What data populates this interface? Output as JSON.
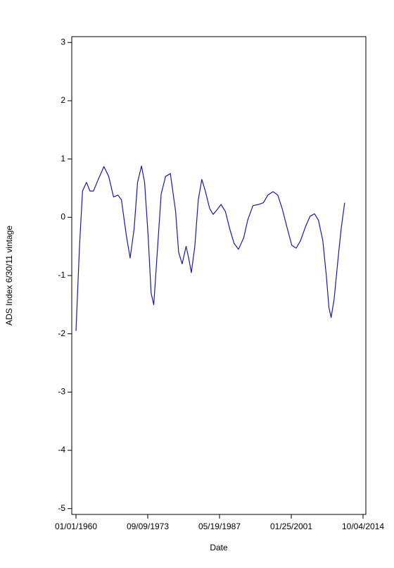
{
  "chart_data": {
    "type": "line",
    "x_label": "Date",
    "y_label": "ADS Index 6/30/11 vintage",
    "x": [
      "1960-01",
      "1960-09",
      "1961-04",
      "1962-01",
      "1962-09",
      "1963-05",
      "1964-04",
      "1965-05",
      "1966-04",
      "1967-03",
      "1968-01",
      "1968-09",
      "1969-08",
      "1970-05",
      "1971-02",
      "1971-10",
      "1972-07",
      "1973-02",
      "1973-10",
      "1974-05",
      "1974-11",
      "1975-08",
      "1976-04",
      "1977-02",
      "1978-01",
      "1979-01",
      "1979-08",
      "1980-04",
      "1981-01",
      "1981-07",
      "1982-01",
      "1982-09",
      "1983-05",
      "1984-01",
      "1984-09",
      "1985-07",
      "1986-03",
      "1986-11",
      "1987-09",
      "1988-07",
      "1989-05",
      "1990-03",
      "1991-01",
      "1992-01",
      "1992-10",
      "1993-10",
      "1994-11",
      "1995-10",
      "1996-08",
      "1997-08",
      "1998-07",
      "1999-05",
      "2000-05",
      "2001-03",
      "2002-01",
      "2002-11",
      "2003-11",
      "2004-09",
      "2005-07",
      "2006-04",
      "2007-02",
      "2007-10",
      "2008-04",
      "2008-09",
      "2009-04",
      "2010-01",
      "2010-08",
      "2011-04"
    ],
    "series": [
      {
        "color": "#1a1aa6",
        "values": [
          -1.95,
          -0.5,
          0.45,
          0.6,
          0.45,
          0.45,
          0.65,
          0.87,
          0.7,
          0.35,
          0.38,
          0.3,
          -0.3,
          -0.7,
          -0.2,
          0.6,
          0.88,
          0.6,
          -0.3,
          -1.3,
          -1.5,
          -0.5,
          0.4,
          0.7,
          0.75,
          0.1,
          -0.6,
          -0.8,
          -0.5,
          -0.7,
          -0.95,
          -0.5,
          0.3,
          0.65,
          0.45,
          0.15,
          0.05,
          0.12,
          0.22,
          0.1,
          -0.2,
          -0.45,
          -0.55,
          -0.35,
          -0.05,
          0.2,
          0.22,
          0.25,
          0.38,
          0.44,
          0.38,
          0.15,
          -0.2,
          -0.48,
          -0.53,
          -0.4,
          -0.15,
          0.02,
          0.06,
          -0.05,
          -0.4,
          -1.0,
          -1.55,
          -1.72,
          -1.4,
          -0.7,
          -0.2,
          0.25
        ]
      }
    ],
    "xlim": [
      "1959-03-13",
      "2015-04-18"
    ],
    "xticks": [
      {
        "value": "1960-01-01",
        "label": "01/01/1960"
      },
      {
        "value": "1973-09-09",
        "label": "09/09/1973"
      },
      {
        "value": "1987-05-19",
        "label": "05/19/1987"
      },
      {
        "value": "2001-01-25",
        "label": "01/25/2001"
      },
      {
        "value": "2014-10-04",
        "label": "10/04/2014"
      }
    ],
    "ylim": [
      -5.1,
      3.1
    ],
    "yticks": [
      -5,
      -4,
      -3,
      -2,
      -1,
      0,
      1,
      2,
      3
    ]
  }
}
